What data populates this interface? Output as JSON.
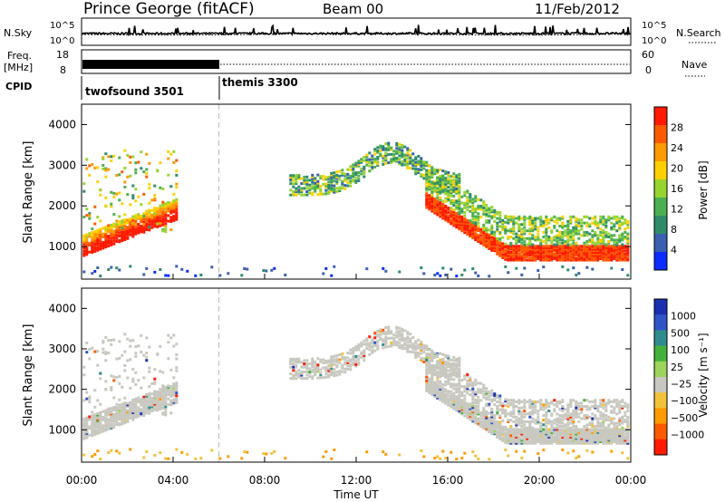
{
  "header": {
    "station": "Prince George (fitACF)",
    "beam": "Beam 00",
    "date": "11/Feb/2012"
  },
  "left_labels": {
    "nsky": "N.Sky",
    "freq_line1": "Freq.",
    "freq_line2": "[MHz]",
    "cpid": "CPID"
  },
  "right_labels": {
    "nsearch": "N.Search",
    "nave": "Nave"
  },
  "noise_panel": {
    "left_ticks": [
      "10^5",
      "10^0"
    ],
    "right_ticks": [
      "10^5",
      "10^0"
    ]
  },
  "freq_panel": {
    "left_ticks": [
      "18",
      "8"
    ],
    "right_ticks": [
      "60",
      "0"
    ]
  },
  "cpid_panel": {
    "modes": [
      {
        "name": "twofsound 3501",
        "start_hour": 0,
        "end_hour": 6
      },
      {
        "name": "themis 3300",
        "start_hour": 6,
        "end_hour": 24
      }
    ]
  },
  "colorbars": {
    "power": {
      "label": "Power [dB]",
      "ticks": [
        "4",
        "8",
        "12",
        "16",
        "20",
        "24",
        "28"
      ],
      "colors": [
        "#0a2cff",
        "#3a5fb0",
        "#2f8c6a",
        "#4cb050",
        "#98d430",
        "#ffd000",
        "#ff9a00",
        "#ff5a00",
        "#ff1a00"
      ]
    },
    "velocity": {
      "label": "Velocity [m s⁻¹]",
      "ticks": [
        "1000",
        "500",
        "100",
        "25",
        "−25",
        "−100",
        "−500",
        "−1000"
      ],
      "colors": [
        "#1a2fb0",
        "#2e55c8",
        "#2f8c8c",
        "#44b23a",
        "#9ed45a",
        "#c8c8c0",
        "#f2c23a",
        "#ff9a00",
        "#ff5a00",
        "#ff1a00"
      ]
    }
  },
  "chart_data": [
    {
      "type": "heatmap",
      "ylabel": "Slant Range [km]",
      "ylim": [
        200,
        4500
      ],
      "yticks": [
        "1000",
        "2000",
        "3000",
        "4000"
      ],
      "xlim": [
        0,
        24
      ],
      "quantity": "power"
    },
    {
      "type": "heatmap",
      "ylabel": "Slant Range [km]",
      "xlabel": "Time UT",
      "ylim": [
        200,
        4500
      ],
      "yticks": [
        "1000",
        "2000",
        "3000",
        "4000"
      ],
      "xlim": [
        0,
        24
      ],
      "xticks": [
        "00:00",
        "04:00",
        "08:00",
        "12:00",
        "16:00",
        "20:00",
        "00:00"
      ],
      "quantity": "velocity"
    }
  ]
}
